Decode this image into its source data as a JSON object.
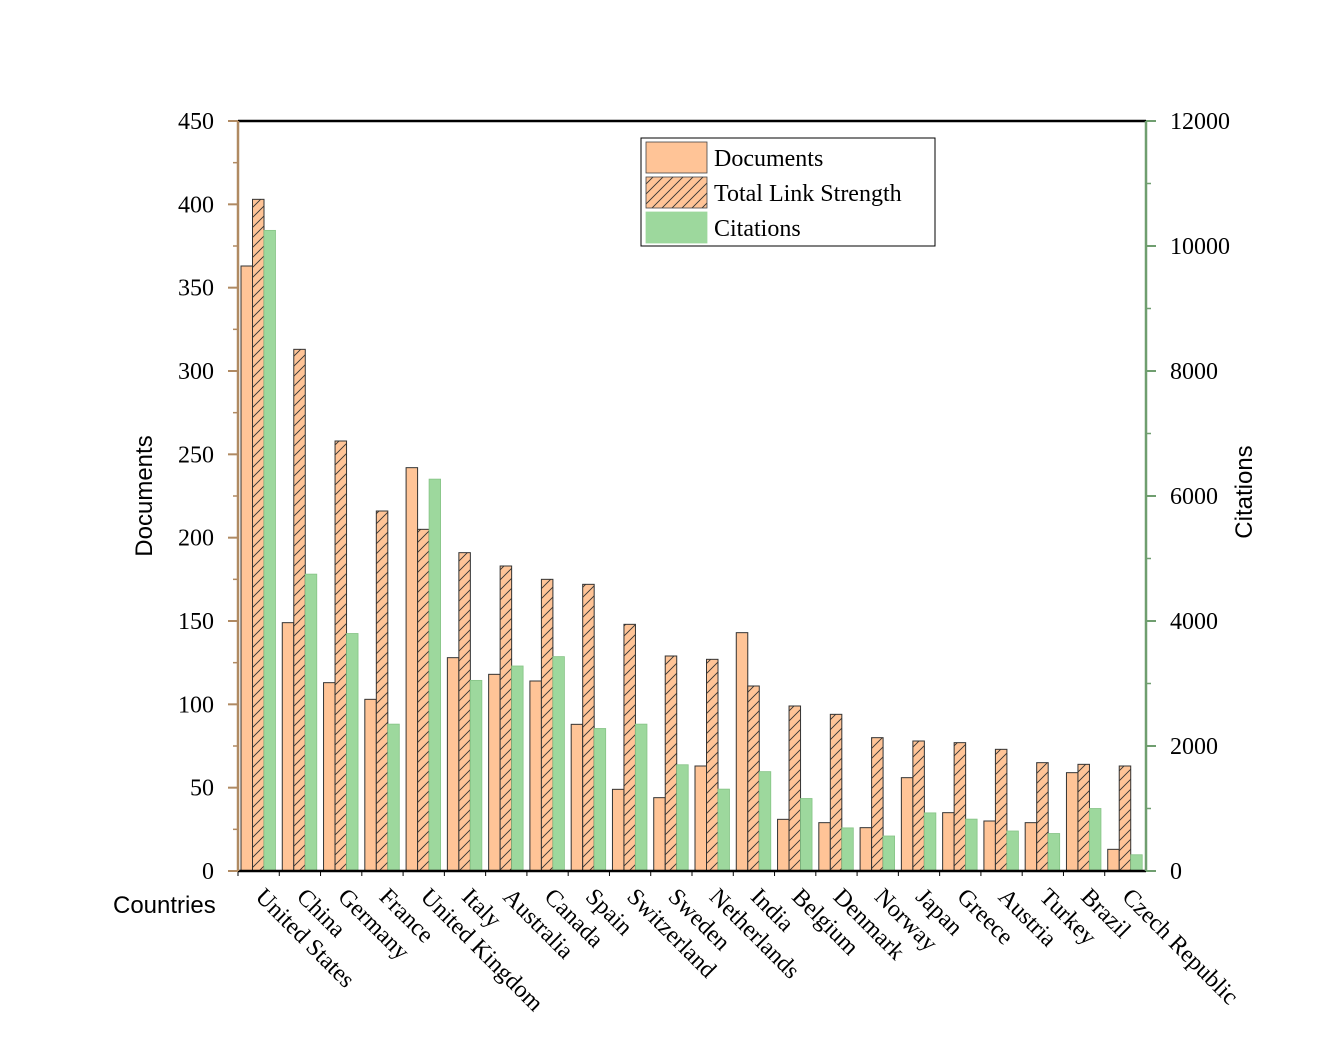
{
  "chart_data": {
    "type": "bar",
    "xlabel": "Countries",
    "ylabel_left": "Documents",
    "ylabel_right": "Citations",
    "ylim_left": [
      0,
      450
    ],
    "ylim_right": [
      0,
      12000
    ],
    "yticks_left": [
      "0",
      "50",
      "100",
      "150",
      "200",
      "250",
      "300",
      "350",
      "400",
      "450"
    ],
    "yticks_right": [
      "0",
      "2000",
      "4000",
      "6000",
      "8000",
      "10000",
      "12000"
    ],
    "legend_position": "top-right",
    "categories": [
      "United States",
      "China",
      "Germany",
      "France",
      "United Kingdom",
      "Italy",
      "Australia",
      "Canada",
      "Spain",
      "Switzerland",
      "Sweden",
      "Netherlands",
      "India",
      "Belgium",
      "Denmark",
      "Norway",
      "Japan",
      "Greece",
      "Austria",
      "Turkey",
      "Brazil",
      "Czech Republic"
    ],
    "series": [
      {
        "name": "Documents",
        "axis": "left",
        "pattern": "solid",
        "values": [
          363,
          149,
          113,
          103,
          242,
          128,
          118,
          114,
          88,
          49,
          44,
          63,
          143,
          31,
          29,
          26,
          56,
          35,
          30,
          29,
          59,
          13
        ]
      },
      {
        "name": "Total Link Strength",
        "axis": "left",
        "pattern": "hatched",
        "values": [
          403,
          313,
          258,
          216,
          205,
          191,
          183,
          175,
          172,
          148,
          129,
          127,
          111,
          99,
          94,
          80,
          78,
          77,
          73,
          65,
          64,
          63
        ]
      },
      {
        "name": "Citations",
        "axis": "right",
        "pattern": "solid",
        "values": [
          10250,
          4750,
          3800,
          2350,
          6270,
          3050,
          3280,
          3430,
          2280,
          2350,
          1700,
          1310,
          1590,
          1160,
          690,
          560,
          930,
          830,
          640,
          600,
          1000,
          260
        ]
      }
    ],
    "colors": {
      "documents": "#ffc497",
      "link_strength": "#ffc497",
      "citations": "#9dd89d",
      "left_axis": "#b08a62",
      "right_axis": "#6f9e6f"
    }
  }
}
